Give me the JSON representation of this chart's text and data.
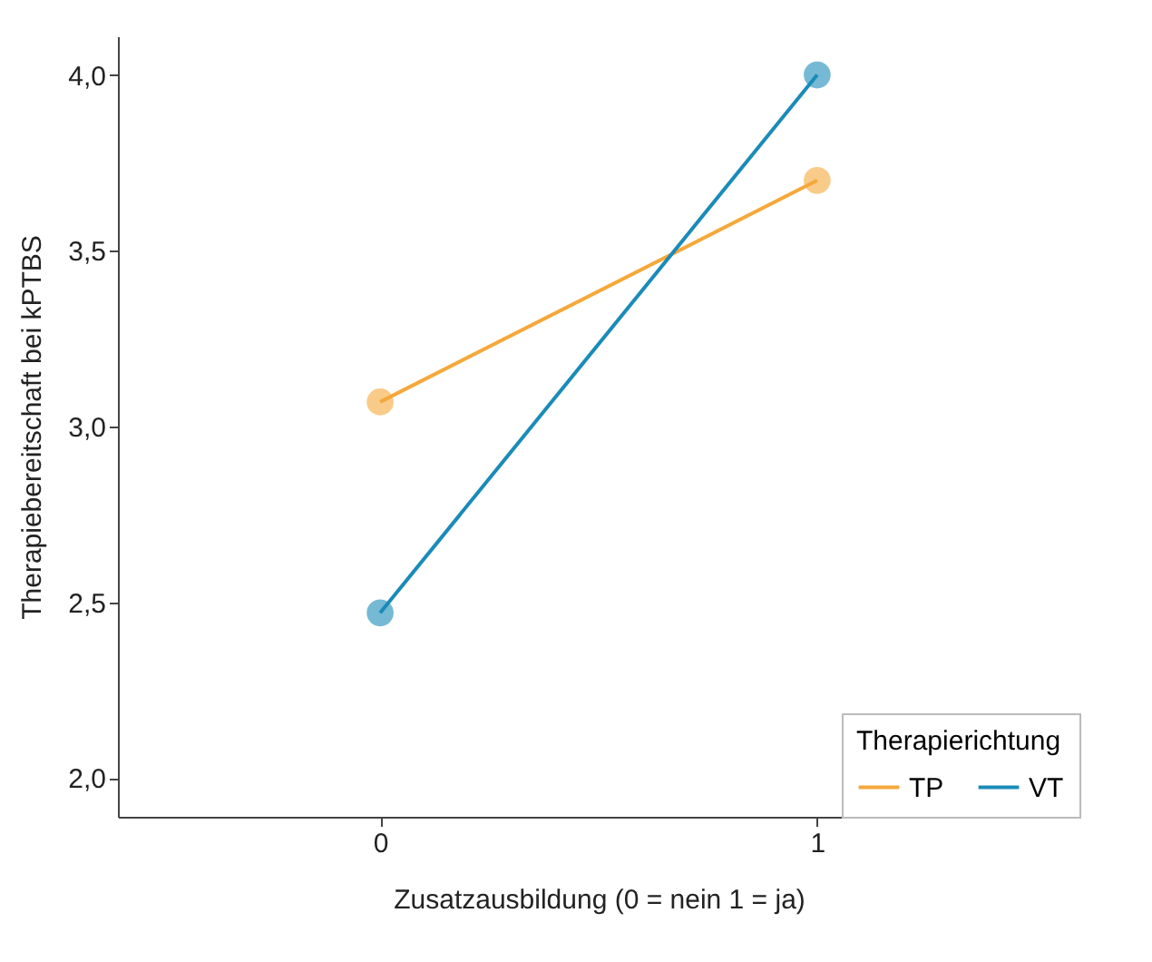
{
  "chart_data": {
    "type": "line",
    "xlabel": "Zusatzausbildung (0 = nein 1 = ja)",
    "ylabel": "Therapiebereitschaft bei kPTBS",
    "legend_title": "Therapierichtung",
    "x": [
      0,
      1
    ],
    "series": [
      {
        "name": "TP",
        "color": "#f5a83a",
        "values": [
          3.07,
          3.7
        ]
      },
      {
        "name": "VT",
        "color": "#1a8bb8",
        "values": [
          2.47,
          4.0
        ]
      }
    ],
    "xlim": [
      -0.6,
      1.6
    ],
    "xticks": [
      0,
      1
    ],
    "ylim": [
      1.89,
      4.11
    ],
    "yticks": [
      {
        "value": 2.0,
        "label": "2,0"
      },
      {
        "value": 2.5,
        "label": "2,5"
      },
      {
        "value": 3.0,
        "label": "3,0"
      },
      {
        "value": 3.5,
        "label": "3,5"
      },
      {
        "value": 4.0,
        "label": "4,0"
      }
    ],
    "marker": "circle",
    "line_style": "solid",
    "grid": false,
    "legend": "bottom right"
  }
}
